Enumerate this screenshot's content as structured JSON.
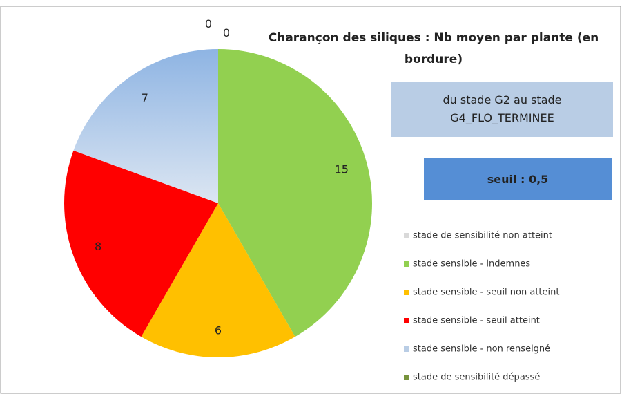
{
  "chart_data": {
    "type": "pie",
    "title": "Charançon des siliques : Nb moyen par plante (en bordure)",
    "annotations": [
      "du stade G2 au stade G4_FLO_TERMINEE",
      "seuil : 0,5"
    ],
    "categories": [
      "stade de sensibilité non atteint",
      "stade sensible - indemnes",
      "stade sensible - seuil non atteint",
      "stade sensible - seuil atteint",
      "stade sensible - non renseigné",
      "stade de sensibilité dépassé"
    ],
    "values": [
      0,
      15,
      6,
      8,
      7,
      0
    ],
    "colors": [
      "#d9d9d9",
      "#92d050",
      "#ffc000",
      "#ff0000",
      "#b9cde5",
      "#77933c"
    ]
  }
}
